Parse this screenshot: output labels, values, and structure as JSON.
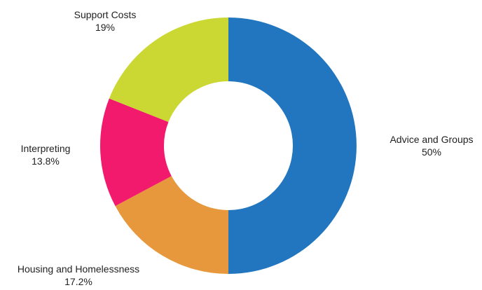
{
  "chart_data": {
    "type": "pie",
    "donut": true,
    "title": "",
    "categories": [
      "Advice and Groups",
      "Housing and Homelessness",
      "Interpreting",
      "Support Costs"
    ],
    "values": [
      50,
      17.2,
      13.8,
      19
    ],
    "value_labels": [
      "50%",
      "17.2%",
      "13.8%",
      "19%"
    ],
    "colors": [
      "#2176bf",
      "#e8983c",
      "#f21a6d",
      "#cbd833"
    ],
    "legend": "none",
    "start_angle": "top",
    "direction": "clockwise"
  }
}
